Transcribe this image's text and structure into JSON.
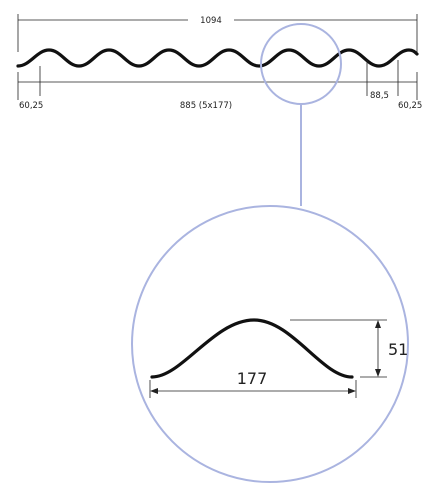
{
  "profile": {
    "total_width_label": "1094",
    "left_edge_label": "60,25",
    "middle_label": "885 (5x177)",
    "right_pitch_label": "88,5",
    "right_edge_label": "60,25"
  },
  "detail": {
    "width_label": "177",
    "height_label": "51"
  }
}
